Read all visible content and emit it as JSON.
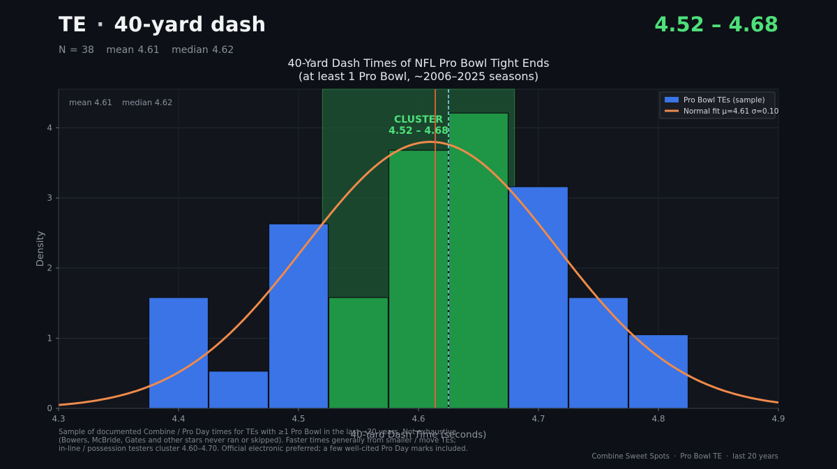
{
  "header": {
    "position": "TE",
    "separator": "·",
    "drill": "40-yard dash",
    "range": "4.52 – 4.68",
    "stats": {
      "n": "N = 38",
      "mean": "mean 4.61",
      "median": "median 4.62"
    }
  },
  "chart_data": {
    "type": "bar",
    "title_line1": "40-Yard Dash Times of NFL Pro Bowl Tight Ends",
    "title_line2": "(at least 1 Pro Bowl, ~2006–2025 seasons)",
    "xlabel": "40-Yard Dash Time (seconds)",
    "ylabel": "Density",
    "xlim": [
      4.3,
      4.9
    ],
    "ylim": [
      0,
      4.55
    ],
    "xticks": [
      "4.3",
      "4.4",
      "4.5",
      "4.6",
      "4.7",
      "4.8",
      "4.9"
    ],
    "yticks": [
      "0",
      "1",
      "2",
      "3",
      "4"
    ],
    "grid": true,
    "bins": [
      {
        "start": 4.375,
        "end": 4.425,
        "density": 1.58,
        "cluster": false
      },
      {
        "start": 4.425,
        "end": 4.475,
        "density": 0.53,
        "cluster": false
      },
      {
        "start": 4.475,
        "end": 4.525,
        "density": 2.63,
        "cluster": false
      },
      {
        "start": 4.525,
        "end": 4.575,
        "density": 1.58,
        "cluster": true
      },
      {
        "start": 4.575,
        "end": 4.625,
        "density": 3.68,
        "cluster": true
      },
      {
        "start": 4.625,
        "end": 4.675,
        "density": 4.21,
        "cluster": true
      },
      {
        "start": 4.675,
        "end": 4.725,
        "density": 3.16,
        "cluster": false
      },
      {
        "start": 4.725,
        "end": 4.775,
        "density": 1.58,
        "cluster": false
      },
      {
        "start": 4.775,
        "end": 4.825,
        "density": 1.05,
        "cluster": false
      }
    ],
    "normal_fit": {
      "mu": 4.61,
      "sigma": 0.105
    },
    "mean": 4.614,
    "median": 4.625,
    "cluster_band": [
      4.52,
      4.68
    ],
    "cluster_label_line1": "CLUSTER",
    "cluster_label_line2": "4.52 – 4.68",
    "inset_text": {
      "mean": "mean 4.61",
      "median": "median 4.62"
    },
    "legend": {
      "placement": "top-right",
      "entries": [
        {
          "label": "Pro Bowl TEs (sample)",
          "kind": "bar"
        },
        {
          "label": "Normal fit  μ=4.61  σ=0.10",
          "kind": "line"
        }
      ]
    },
    "colors": {
      "bar": "#3a74e6",
      "cluster_bar": "#1f9645",
      "band": "#1d5a34",
      "fit": "#f08a4b",
      "mean_line": "#e5603d",
      "median_line": "#86d8f0",
      "cluster_text": "#4ee07a"
    }
  },
  "footnote": {
    "line1": "Sample of documented Combine / Pro Day times for TEs with ≥1 Pro Bowl in the last ~20 years. Not exhaustive",
    "line2": "(Bowers, McBride, Gates and other stars never ran or skipped). Faster times generally from smaller / move TEs;",
    "line3": "in-line / possession testers cluster 4.60–4.70. Official electronic preferred; a few well-cited Pro Day marks included."
  },
  "credit": {
    "source": "Combine Sweet Spots",
    "topic": "Pro Bowl TE",
    "period": "last 20 years",
    "sep": "·"
  }
}
